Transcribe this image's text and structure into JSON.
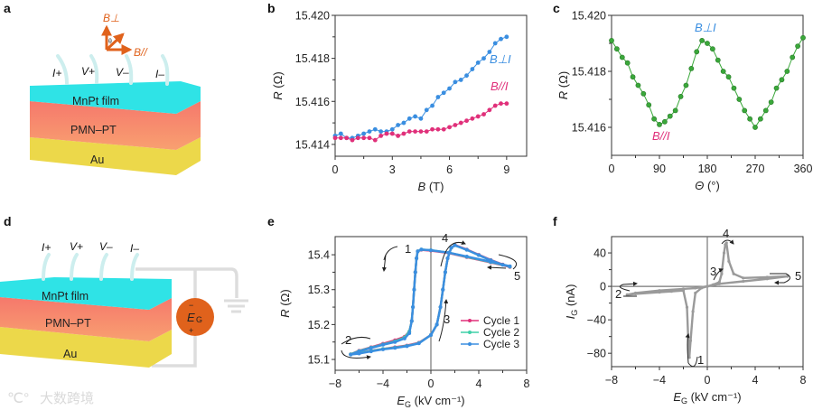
{
  "panel_labels": [
    "a",
    "b",
    "c",
    "d",
    "e",
    "f"
  ],
  "diagram_a": {
    "layers": [
      "MnPt film",
      "PMN–PT",
      "Au"
    ],
    "probes": [
      "I+",
      "V+",
      "V–",
      "I–"
    ],
    "field_perp": "B⊥",
    "field_par": "B//",
    "angle": "θ"
  },
  "diagram_d": {
    "layers": [
      "MnPt film",
      "PMN–PT",
      "Au"
    ],
    "probes": [
      "I+",
      "V+",
      "V–",
      "I–"
    ],
    "source_var": "E",
    "source_sub": "G",
    "source_minus": "−",
    "source_plus": "+"
  },
  "watermark": "大数跨境",
  "colors": {
    "blue": "#3a8ee0",
    "magenta": "#e0307a",
    "green": "#3aa83a",
    "teal": "#3fd0a8",
    "gray": "#9a9a9a",
    "orange": "#e0621c",
    "cyan": "#2fe0e0",
    "pmn": "#f6806e",
    "au": "#ecd84a"
  },
  "chart_data": [
    {
      "panel": "b",
      "type": "line",
      "xlabel_var": "B",
      "xlabel_unit": " (T)",
      "ylabel_var": "R",
      "ylabel_unit": " (Ω)",
      "xlim": [
        0,
        10.05
      ],
      "ylim": [
        15.41345,
        15.42
      ],
      "xticks": [
        0,
        3,
        6,
        9
      ],
      "xtick_labels": [
        "0",
        "3",
        "6",
        "9"
      ],
      "yticks": [
        15.414,
        15.416,
        15.418,
        15.42
      ],
      "ytick_labels": [
        "15.414",
        "15.416",
        "15.418",
        "15.420"
      ],
      "annotations": [
        "B⊥I",
        "B//I"
      ],
      "x": [
        0,
        0.3,
        0.6,
        0.9,
        1.2,
        1.5,
        1.8,
        2.1,
        2.4,
        2.7,
        3.0,
        3.3,
        3.6,
        3.9,
        4.2,
        4.5,
        4.8,
        5.1,
        5.4,
        5.7,
        6.0,
        6.3,
        6.6,
        6.9,
        7.2,
        7.5,
        7.8,
        8.1,
        8.4,
        8.7,
        9.0
      ],
      "series": [
        {
          "name": "B⊥I",
          "color": "#3a8ee0",
          "values": [
            15.4144,
            15.4145,
            15.4143,
            15.4143,
            15.4144,
            15.4145,
            15.4146,
            15.4147,
            15.4146,
            15.4146,
            15.4147,
            15.4149,
            15.415,
            15.4152,
            15.4153,
            15.4152,
            15.4156,
            15.4158,
            15.4162,
            15.4164,
            15.4166,
            15.4169,
            15.417,
            15.4172,
            15.4175,
            15.4178,
            15.418,
            15.4183,
            15.4187,
            15.4189,
            15.419
          ]
        },
        {
          "name": "B//I",
          "color": "#e0307a",
          "values": [
            15.4143,
            15.4143,
            15.4143,
            15.4142,
            15.4143,
            15.4143,
            15.4143,
            15.4142,
            15.4144,
            15.4145,
            15.4145,
            15.4144,
            15.4145,
            15.4146,
            15.4146,
            15.4146,
            15.4146,
            15.4147,
            15.4147,
            15.4147,
            15.4148,
            15.4149,
            15.415,
            15.4151,
            15.4152,
            15.4153,
            15.4154,
            15.4156,
            15.4158,
            15.4159,
            15.4159
          ]
        }
      ]
    },
    {
      "panel": "c",
      "type": "line",
      "xlabel_var": "Θ",
      "xlabel_unit": " (°)",
      "ylabel_var": "R",
      "ylabel_unit": " (Ω)",
      "xlim": [
        0,
        360
      ],
      "ylim": [
        15.415,
        15.42
      ],
      "xticks": [
        0,
        90,
        180,
        270,
        360
      ],
      "xtick_labels": [
        "0",
        "90",
        "180",
        "270",
        "360"
      ],
      "yticks": [
        15.416,
        15.418,
        15.42
      ],
      "ytick_labels": [
        "15.416",
        "15.418",
        "15.420"
      ],
      "annotations": [
        "B⊥I",
        "B//I"
      ],
      "x": [
        0,
        10,
        20,
        30,
        40,
        50,
        60,
        70,
        80,
        90,
        100,
        110,
        120,
        130,
        140,
        150,
        160,
        170,
        180,
        190,
        200,
        210,
        220,
        230,
        240,
        250,
        260,
        270,
        280,
        290,
        300,
        310,
        320,
        330,
        340,
        350,
        360
      ],
      "series": [
        {
          "name": "R(Θ)",
          "color": "#3aa83a",
          "values": [
            15.4191,
            15.4188,
            15.4185,
            15.4183,
            15.4178,
            15.4175,
            15.4172,
            15.4168,
            15.4163,
            15.4161,
            15.4162,
            15.4164,
            15.4166,
            15.4171,
            15.4175,
            15.4181,
            15.4187,
            15.4191,
            15.419,
            15.4188,
            15.4184,
            15.418,
            15.4178,
            15.4174,
            15.417,
            15.4166,
            15.4163,
            15.416,
            15.4163,
            15.4166,
            15.4169,
            15.4174,
            15.4177,
            15.418,
            15.4185,
            15.4189,
            15.4192
          ]
        }
      ]
    },
    {
      "panel": "e",
      "type": "line",
      "xlabel_var": "E",
      "xlabel_sub": "G",
      "xlabel_unit": " (kV cm⁻¹)",
      "ylabel_var": "R",
      "ylabel_unit": " (Ω)",
      "xlim": [
        -8,
        8
      ],
      "ylim": [
        15.069,
        15.452
      ],
      "xticks": [
        -8,
        -4,
        0,
        4,
        8
      ],
      "xtick_labels": [
        "−8",
        "−4",
        "0",
        "4",
        "8"
      ],
      "yticks": [
        15.1,
        15.2,
        15.3,
        15.4
      ],
      "ytick_labels": [
        "15.1",
        "15.2",
        "15.3",
        "15.4"
      ],
      "annotations": [
        "1",
        "2",
        "3",
        "4",
        "5"
      ],
      "legend_position": "lower-right",
      "x": [
        6.6,
        5,
        3,
        1.5,
        0,
        -0.8,
        -1.1,
        -1.2,
        -1.3,
        -1.4,
        -1.5,
        -1.6,
        -1.8,
        -2.2,
        -3,
        -4,
        -5,
        -6,
        -6.7,
        -6,
        -5,
        -4,
        -3,
        -2,
        -1,
        0,
        0.5,
        0.8,
        1,
        1.2,
        1.4,
        1.7,
        2,
        3,
        4,
        5,
        6,
        6.6
      ],
      "series": [
        {
          "name": "Cycle 1",
          "color": "#e0307a",
          "values": [
            15.365,
            15.378,
            15.393,
            15.405,
            15.412,
            15.414,
            15.41,
            15.39,
            15.35,
            15.3,
            15.25,
            15.21,
            15.18,
            15.165,
            15.155,
            15.145,
            15.135,
            15.125,
            15.115,
            15.118,
            15.125,
            15.13,
            15.135,
            15.14,
            15.148,
            15.17,
            15.2,
            15.25,
            15.3,
            15.35,
            15.39,
            15.42,
            15.428,
            15.415,
            15.4,
            15.385,
            15.372,
            15.365
          ]
        },
        {
          "name": "Cycle 2",
          "color": "#3fd0a8",
          "values": [
            15.366,
            15.379,
            15.394,
            15.406,
            15.413,
            15.415,
            15.41,
            15.39,
            15.35,
            15.3,
            15.25,
            15.21,
            15.18,
            15.163,
            15.152,
            15.143,
            15.134,
            15.124,
            15.115,
            15.118,
            15.124,
            15.13,
            15.134,
            15.139,
            15.147,
            15.17,
            15.2,
            15.25,
            15.3,
            15.35,
            15.39,
            15.42,
            15.427,
            15.414,
            15.399,
            15.384,
            15.371,
            15.366
          ]
        },
        {
          "name": "Cycle 3",
          "color": "#3a8ee0",
          "values": [
            15.367,
            15.38,
            15.395,
            15.406,
            15.413,
            15.415,
            15.41,
            15.39,
            15.35,
            15.3,
            15.25,
            15.21,
            15.175,
            15.16,
            15.15,
            15.142,
            15.133,
            15.123,
            15.114,
            15.117,
            15.123,
            15.129,
            15.133,
            15.138,
            15.146,
            15.17,
            15.2,
            15.25,
            15.3,
            15.35,
            15.39,
            15.42,
            15.427,
            15.414,
            15.399,
            15.384,
            15.371,
            15.367
          ]
        }
      ]
    },
    {
      "panel": "f",
      "type": "line",
      "xlabel_var": "E",
      "xlabel_sub": "G",
      "xlabel_unit": " (kV cm⁻¹)",
      "ylabel_var": "I",
      "ylabel_sub": "G",
      "ylabel_unit": " (nA)",
      "xlim": [
        -8,
        8
      ],
      "ylim": [
        -96,
        59.5
      ],
      "xticks": [
        -8,
        -4,
        0,
        4,
        8
      ],
      "xtick_labels": [
        "−8",
        "−4",
        "0",
        "4",
        "8"
      ],
      "yticks": [
        -80,
        -40,
        0,
        40
      ],
      "ytick_labels": [
        "−80",
        "−40",
        "0",
        "40"
      ],
      "annotations": [
        "1",
        "2",
        "3",
        "4",
        "5"
      ],
      "x": [
        6.7,
        5,
        3,
        1,
        0,
        -0.5,
        -1,
        -1.2,
        -1.4,
        -1.5,
        -1.6,
        -1.7,
        -2,
        -3,
        -4,
        -6,
        -6.7,
        -6,
        -4,
        -2,
        -1,
        0,
        0.5,
        1,
        1.2,
        1.4,
        1.5,
        1.6,
        1.8,
        2.2,
        3,
        5,
        6.7
      ],
      "series": [
        {
          "name": "I_G",
          "color": "#9a9a9a",
          "values": [
            12,
            9,
            6,
            3,
            0,
            -2,
            -8,
            -30,
            -65,
            -85,
            -60,
            -25,
            -5,
            -6,
            -7,
            -9,
            -10,
            -8,
            -5,
            -3,
            -2,
            0,
            2,
            5,
            15,
            40,
            50,
            52,
            30,
            15,
            10,
            11,
            12
          ]
        }
      ]
    }
  ]
}
